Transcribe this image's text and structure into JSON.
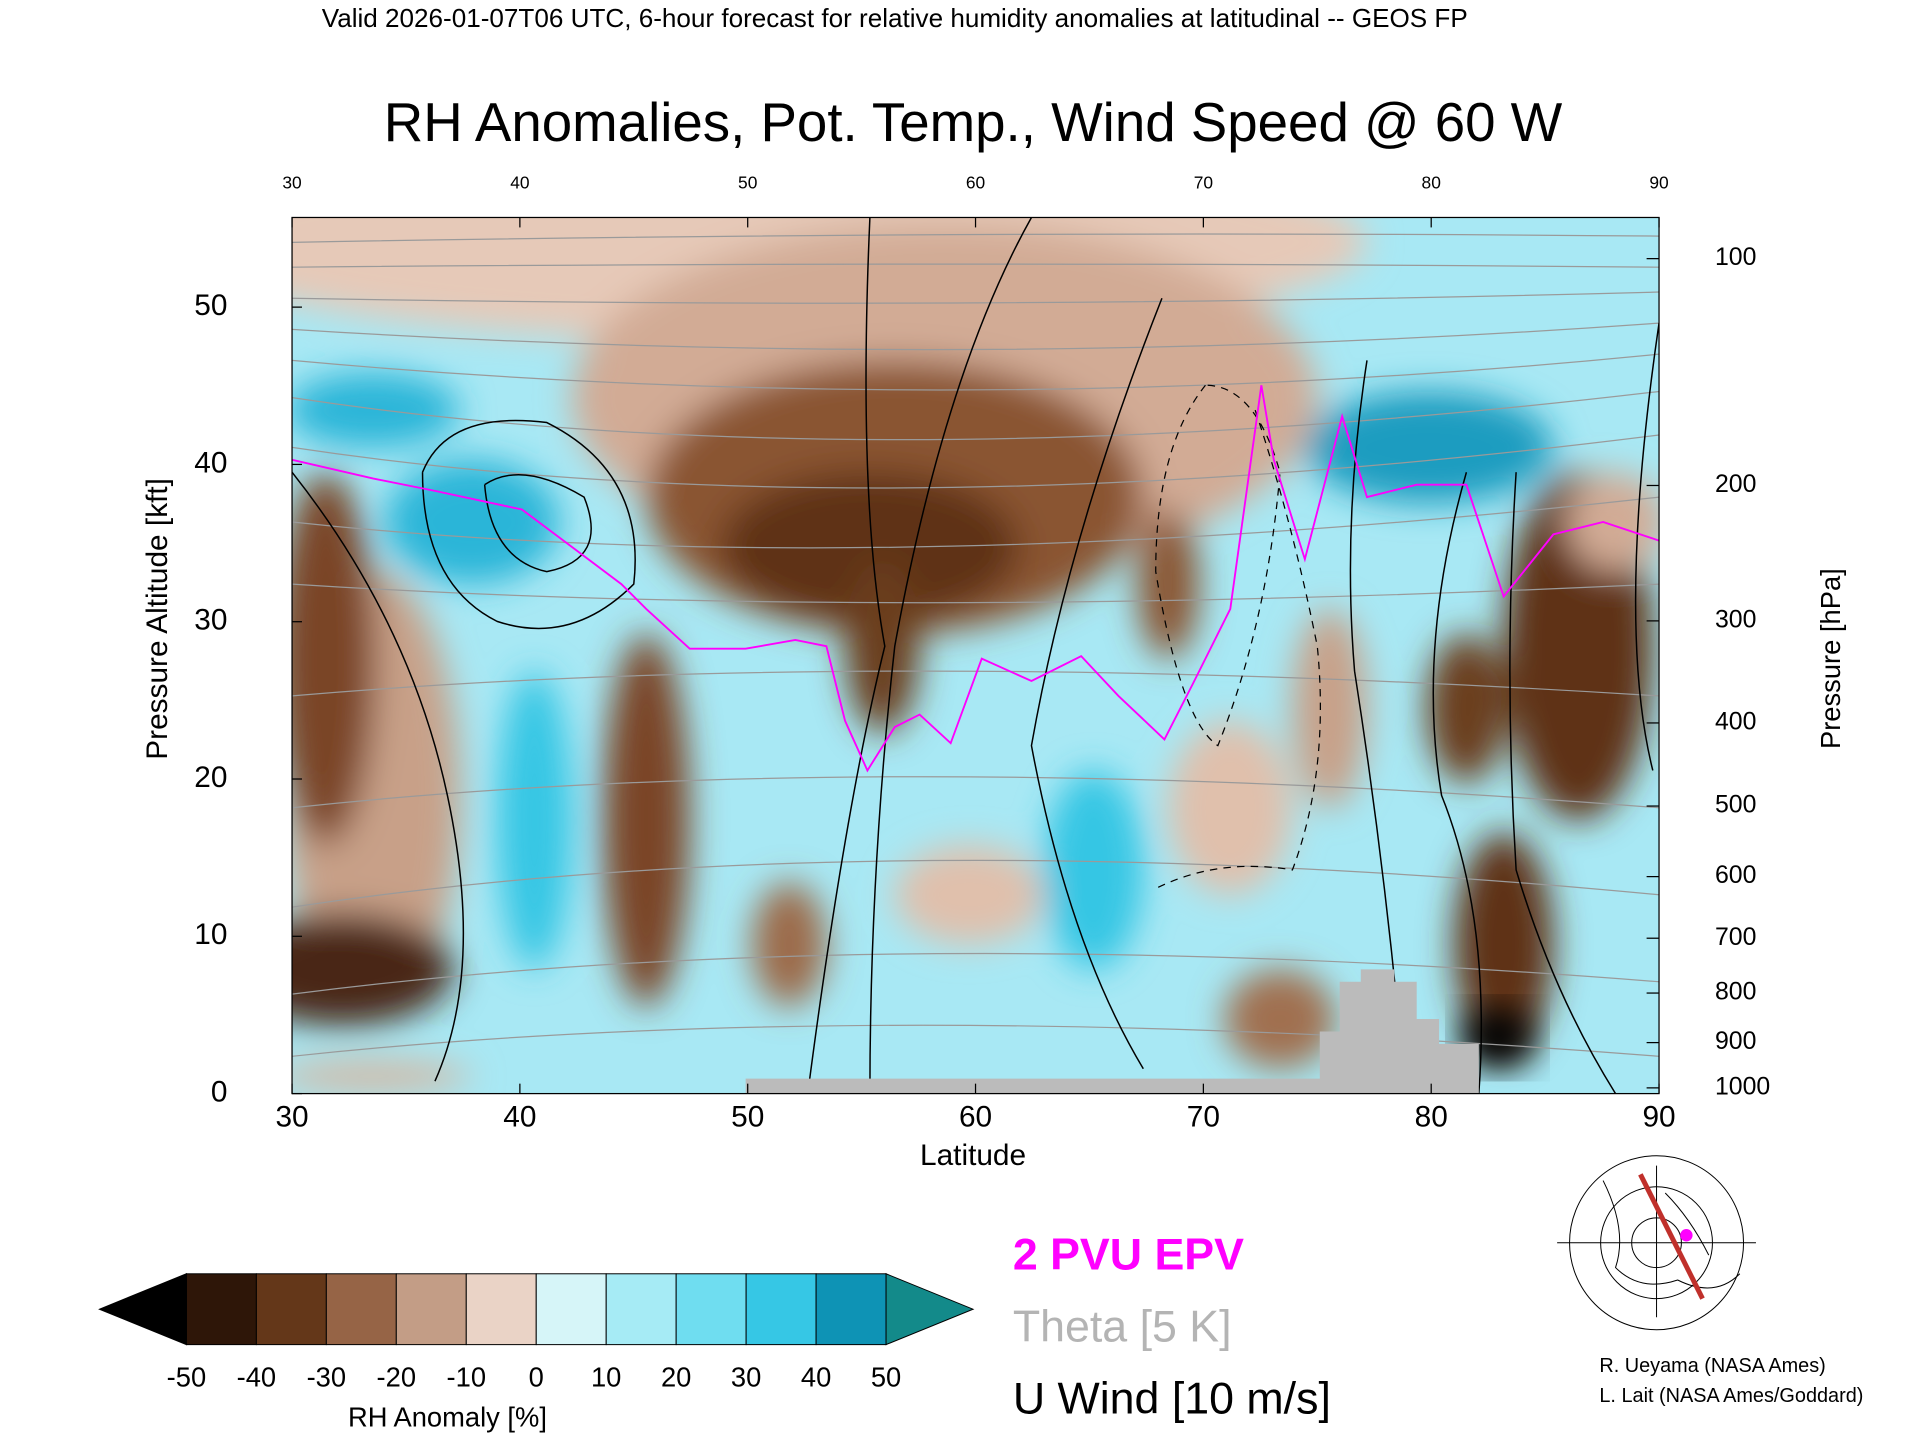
{
  "chart_data": {
    "type": "contour",
    "subtitle": "Valid 2026-01-07T06 UTC, 6-hour forecast for relative humidity anomalies at latitudinal -- GEOS FP",
    "title": "RH Anomalies, Pot. Temp., Wind Speed @ 60 W",
    "xlabel": "Latitude",
    "ylabel": "Pressure Altitude [kft]",
    "y2label": "Pressure [hPa]",
    "xlim": [
      30,
      90
    ],
    "xticks": [
      30,
      40,
      50,
      60,
      70,
      80,
      90
    ],
    "ylim": [
      0,
      55.7
    ],
    "yticks": [
      0,
      10,
      20,
      30,
      40,
      50
    ],
    "y2scale": "pressure-altitude",
    "y2ticks": [
      100,
      200,
      300,
      400,
      500,
      600,
      700,
      800,
      900,
      1000
    ],
    "colorbar": {
      "label": "RH Anomaly [%]",
      "ticks": [
        -50,
        -40,
        -30,
        -20,
        -10,
        0,
        10,
        20,
        30,
        40,
        50
      ],
      "colors": [
        "#2e1608",
        "#643719",
        "#966446",
        "#c39d86",
        "#ead3c6",
        "#d6f5f8",
        "#a6ebf5",
        "#6fddf0",
        "#36c7e5",
        "#0e93b5"
      ],
      "under_color": "#000000",
      "over_color": "#138a8a"
    },
    "legend": [
      {
        "name": "2 PVU EPV",
        "color": "#ff00ff"
      },
      {
        "name": "Theta [5 K]",
        "color": "#b4b4b4"
      },
      {
        "name": "U Wind [10 m/s]",
        "color": "#000000"
      }
    ]
  },
  "credits": [
    "R. Ueyama (NASA Ames)",
    "L. Lait (NASA Ames/Goddard)"
  ]
}
